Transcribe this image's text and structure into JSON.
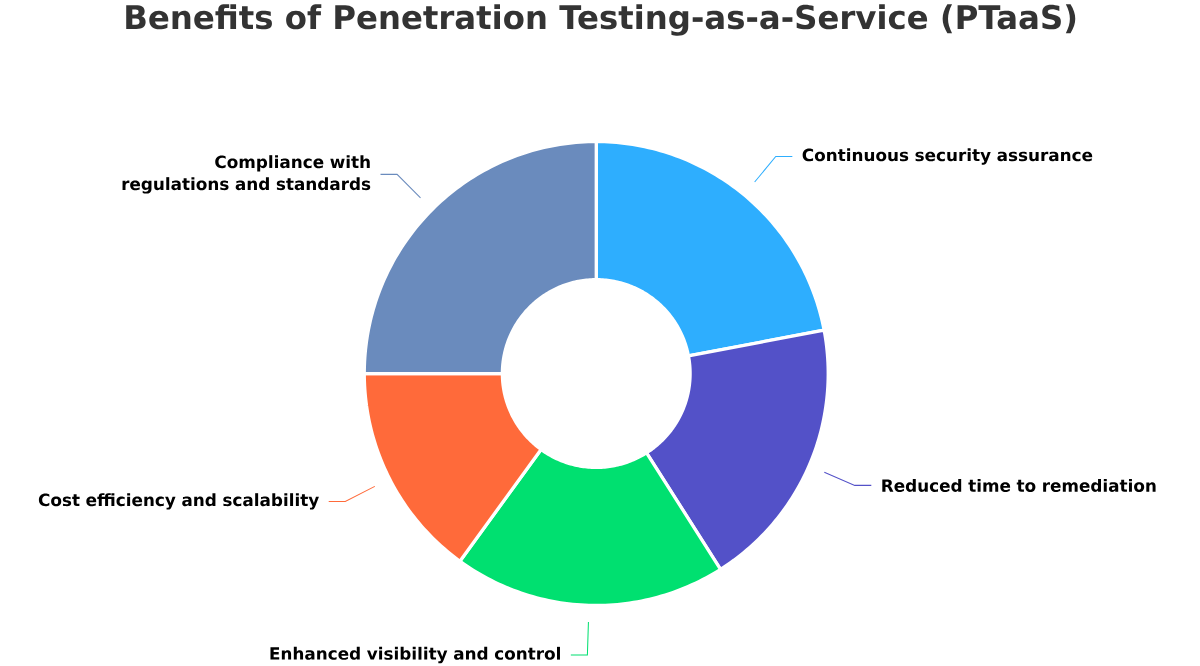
{
  "chart_data": {
    "type": "donut",
    "title": "Benefits of Penetration Testing-as-a-Service (PTaaS)",
    "categories": [
      "Continuous security assurance",
      "Reduced time to remediation",
      "Enhanced visibility and control",
      "Cost efficiency and scalability",
      "Compliance with regulations and standards"
    ],
    "values": [
      22,
      19,
      19,
      15,
      25
    ],
    "colors": [
      "#2eaefe",
      "#5351c8",
      "#00e070",
      "#ff6a3a",
      "#6a8bbd"
    ]
  }
}
